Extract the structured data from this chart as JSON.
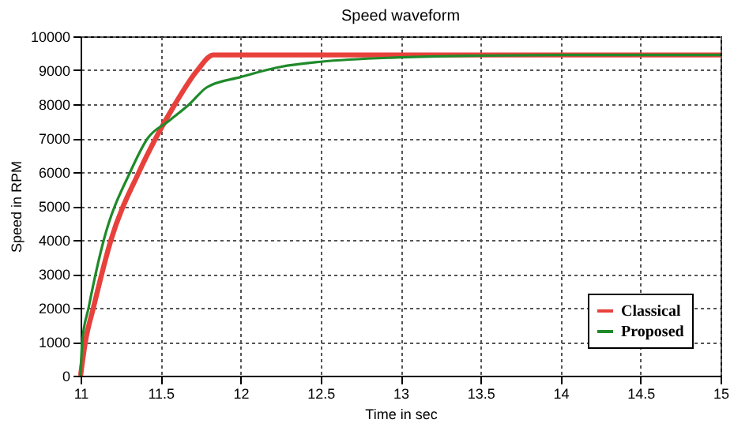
{
  "chart_data": {
    "type": "line",
    "title": "Speed waveform",
    "xlabel": "Time in sec",
    "ylabel": "Speed in RPM",
    "series": [
      {
        "name": "Classical",
        "color": "#e8413c",
        "x": [
          11,
          11.03,
          11.08,
          11.19,
          11.365,
          11.47,
          11.59,
          11.73,
          11.83,
          12,
          13,
          14,
          15
        ],
        "values": [
          0,
          1000,
          2000,
          4000,
          6000,
          7000,
          8000,
          9000,
          9450,
          9450,
          9450,
          9450,
          9450
        ]
      },
      {
        "name": "Proposed",
        "color": "#1f8a2a",
        "x": [
          11,
          11.01,
          11.05,
          11.145,
          11.31,
          11.42,
          11.55,
          11.68,
          11.79,
          12,
          12.25,
          12.5,
          13,
          13.5,
          14,
          15
        ],
        "values": [
          0,
          1000,
          2000,
          4000,
          6000,
          7000,
          7500,
          8000,
          8500,
          8800,
          9100,
          9250,
          9380,
          9430,
          9450,
          9450
        ]
      }
    ],
    "xlim": [
      11,
      15
    ],
    "xticks": [
      11,
      11.5,
      12,
      12.5,
      13,
      13.5,
      14,
      14.5,
      15
    ],
    "ylim": [
      0,
      10000
    ],
    "yticks": [
      0,
      1000,
      2000,
      3000,
      4000,
      5000,
      6000,
      7000,
      8000,
      9000,
      10000
    ],
    "grid": true,
    "legend": "bottom right",
    "marker": "none",
    "line_style": "solid"
  }
}
